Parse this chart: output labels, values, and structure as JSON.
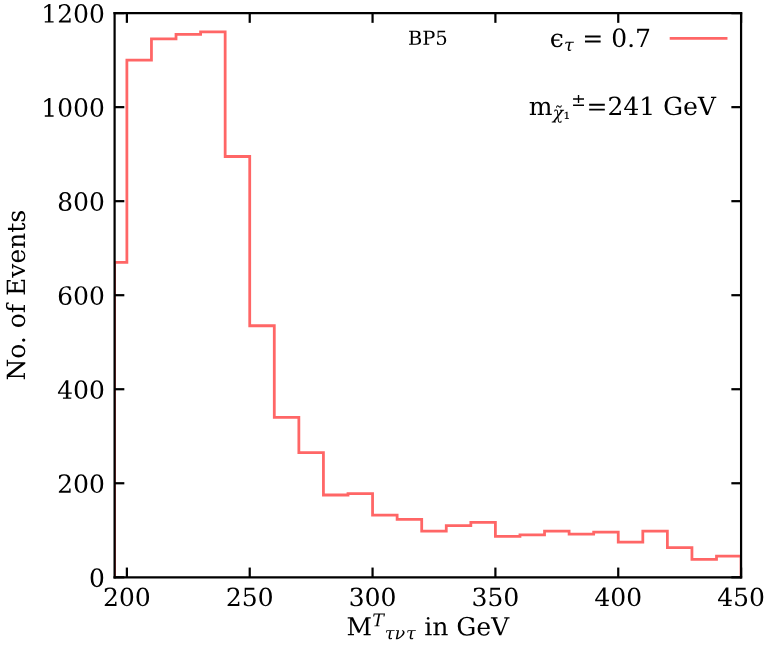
{
  "chart_data": {
    "type": "histogram",
    "title": "BP5",
    "xlabel": "M$^{T}$$_{τν}$$_{τ}$ in GeV",
    "ylabel": "No. of Events",
    "bins": [
      195,
      200,
      210,
      220,
      230,
      240,
      250,
      260,
      270,
      280,
      290,
      300,
      310,
      320,
      330,
      340,
      350,
      360,
      370,
      380,
      390,
      400,
      410,
      420,
      430,
      440,
      450
    ],
    "series": [
      {
        "name": "ϵ$_{τ}$ = 0.7",
        "color": "#ff6666",
        "values": [
          670,
          1100,
          1145,
          1155,
          1160,
          895,
          535,
          340,
          265,
          175,
          178,
          132,
          123,
          98,
          110,
          117,
          87,
          90,
          98,
          92,
          96,
          75,
          98,
          63,
          38,
          45
        ]
      }
    ],
    "annotations": [
      "m$_{χ̃₁}$$^{±}$=241 GeV"
    ],
    "xlim": [
      195,
      450
    ],
    "ylim": [
      0,
      1200
    ],
    "xticks": [
      200,
      250,
      300,
      350,
      400,
      450
    ],
    "yticks": [
      0,
      200,
      400,
      600,
      800,
      1000,
      1200
    ],
    "grid": false,
    "legend": "top right"
  }
}
